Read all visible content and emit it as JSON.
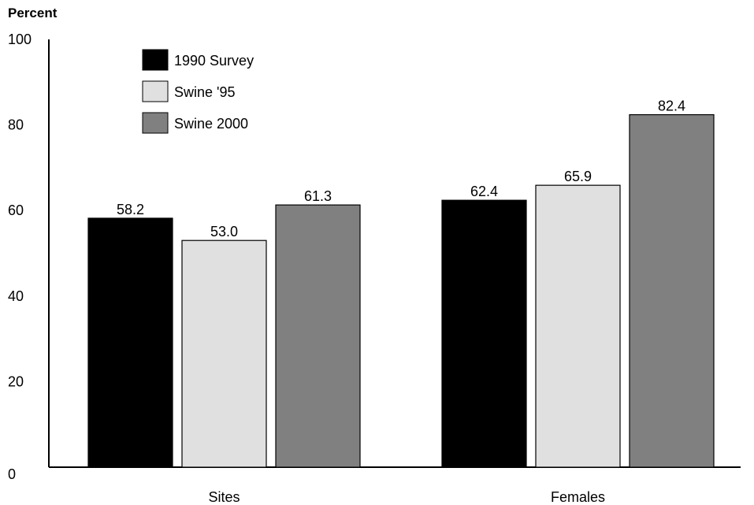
{
  "chart_data": {
    "type": "bar",
    "ylabel": "Percent",
    "xlabel": "",
    "ylim": [
      0,
      100
    ],
    "yticks": [
      0,
      20,
      40,
      60,
      80,
      100
    ],
    "categories": [
      "Sites",
      "Females"
    ],
    "series": [
      {
        "name": "1990 Survey",
        "color": "#000000",
        "values": [
          58.2,
          62.4
        ],
        "labels": [
          "58.2",
          "62.4"
        ]
      },
      {
        "name": "Swine '95",
        "color": "#e0e0e0",
        "values": [
          53.0,
          65.9
        ],
        "labels": [
          "53.0",
          "65.9"
        ]
      },
      {
        "name": "Swine 2000",
        "color": "#808080",
        "values": [
          61.3,
          82.4
        ],
        "labels": [
          "61.3",
          "82.4"
        ]
      }
    ],
    "legend_position": "top-left",
    "grid": false
  }
}
